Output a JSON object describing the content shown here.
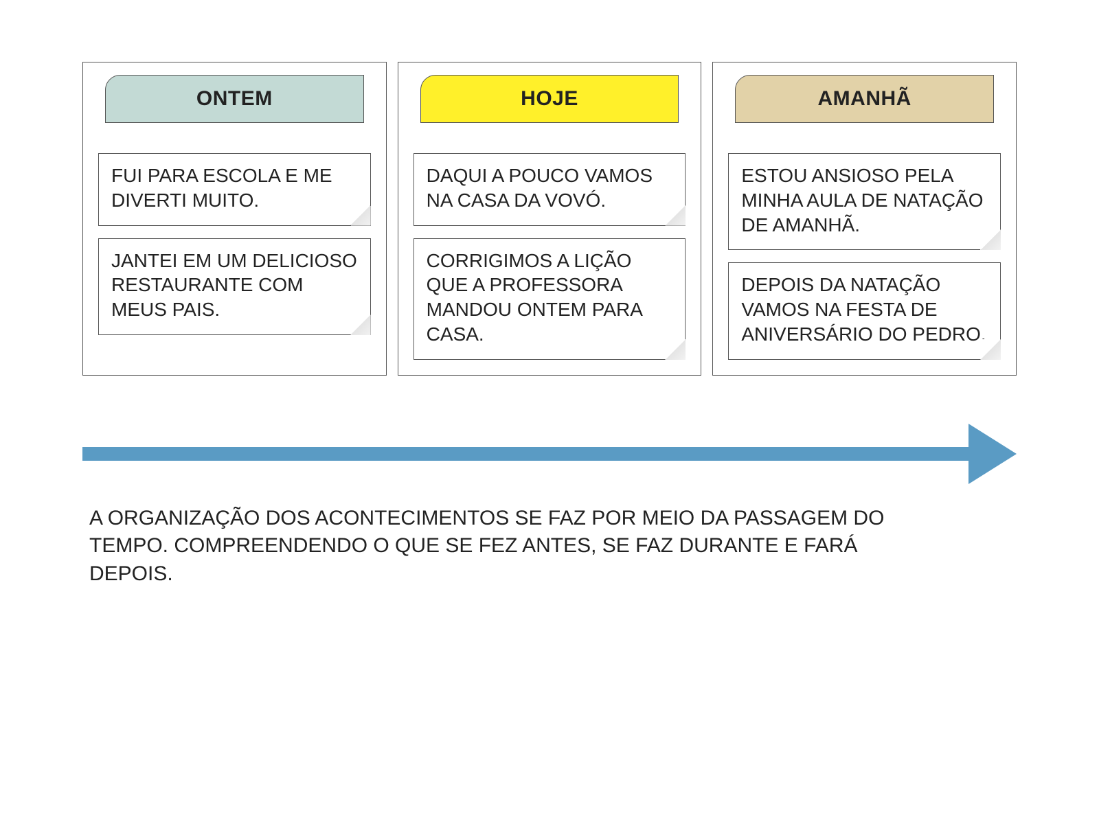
{
  "colors": {
    "arrow": "#5a9bc4",
    "border": "#555555",
    "bg": "#ffffff",
    "text": "#222222"
  },
  "columns": [
    {
      "id": "ontem",
      "title": "ONTEM",
      "header_bg": "#c3dad5",
      "notes": [
        "FUI PARA ESCOLA E ME DIVERTI MUITO.",
        "JANTEI EM UM DELICIOSO RESTAURANTE COM MEUS PAIS."
      ]
    },
    {
      "id": "hoje",
      "title": "HOJE",
      "header_bg": "#fff02a",
      "notes": [
        "DAQUI A POUCO VAMOS NA CASA DA VOVÓ.",
        "CORRIGIMOS A LIÇÃO QUE A PROFESSORA MANDOU ONTEM PARA CASA."
      ]
    },
    {
      "id": "amanha",
      "title": "AMANHÃ",
      "header_bg": "#e2d2a8",
      "notes": [
        "ESTOU ANSIOSO PELA MINHA AULA DE NATAÇÃO DE AMANHÃ.",
        "DEPOIS DA NATAÇÃO VAMOS NA FESTA DE ANIVERSÁRIO DO PEDRO."
      ]
    }
  ],
  "caption": "A ORGANIZAÇÃO DOS ACONTECIMENTOS SE FAZ POR MEIO DA PASSAGEM DO TEMPO. COMPREENDENDO O QUE SE FEZ ANTES, SE FAZ DURANTE E FARÁ DEPOIS."
}
